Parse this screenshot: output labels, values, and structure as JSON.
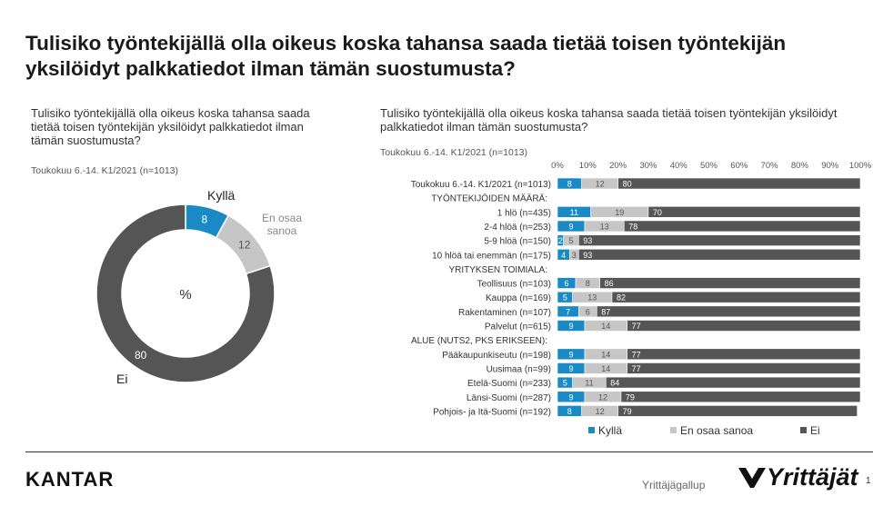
{
  "title": "Tulisiko työntekijällä olla oikeus koska tahansa saada tietää toisen työntekijän yksilöidyt palkkatiedot ilman tämän suostumusta?",
  "colors": {
    "kylla": "#1a8ac6",
    "en_osaa": "#c6c6c6",
    "ei": "#555555"
  },
  "chart_data": [
    {
      "type": "pie",
      "variant": "donut",
      "title": "Tulisiko työntekijällä olla oikeus koska tahansa saada tietää toisen työntekijän yksilöidyt palkkatiedot ilman tämän suostumusta?",
      "subtitle": "Toukokuu 6.-14. K1/2021 (n=1013)",
      "center_label": "%",
      "slices": [
        {
          "label": "Kyllä",
          "value": 8,
          "color": "#1a8ac6"
        },
        {
          "label": "En osaa sanoa",
          "value": 12,
          "color": "#c6c6c6"
        },
        {
          "label": "Ei",
          "value": 80,
          "color": "#555555"
        }
      ]
    },
    {
      "type": "bar",
      "orientation": "horizontal",
      "stacked": true,
      "title": "Tulisiko työntekijällä olla oikeus koska tahansa saada tietää toisen työntekijän yksilöidyt palkkatiedot ilman tämän suostumusta?",
      "subtitle": "Toukokuu 6.-14. K1/2021 (n=1013)",
      "xlim": [
        0,
        100
      ],
      "xticks": [
        "0%",
        "10%",
        "20%",
        "30%",
        "40%",
        "50%",
        "60%",
        "70%",
        "80%",
        "90%",
        "100%"
      ],
      "legend_position": "bottom",
      "legend": [
        "Kyllä",
        "En osaa sanoa",
        "Ei"
      ],
      "rows": [
        {
          "label": "Toukokuu 6.-14. K1/2021 (n=1013)",
          "values": [
            8,
            12,
            80
          ]
        },
        {
          "label": "TYÖNTEKIJÖIDEN MÄÄRÄ:",
          "header": true
        },
        {
          "label": "1 hlö (n=435)",
          "values": [
            11,
            19,
            70
          ]
        },
        {
          "label": "2-4 hlöä (n=253)",
          "values": [
            9,
            13,
            78
          ]
        },
        {
          "label": "5-9 hlöä (n=150)",
          "values": [
            2,
            5,
            93
          ]
        },
        {
          "label": "10 hlöä tai enemmän (n=175)",
          "values": [
            4,
            3,
            93
          ]
        },
        {
          "label": "YRITYKSEN TOIMIALA:",
          "header": true
        },
        {
          "label": "Teollisuus (n=103)",
          "values": [
            6,
            8,
            86
          ]
        },
        {
          "label": "Kauppa (n=169)",
          "values": [
            5,
            13,
            82
          ]
        },
        {
          "label": "Rakentaminen (n=107)",
          "values": [
            7,
            6,
            87
          ]
        },
        {
          "label": "Palvelut (n=615)",
          "values": [
            9,
            14,
            77
          ]
        },
        {
          "label": "ALUE (NUTS2, PKS ERIKSEEN):",
          "header": true
        },
        {
          "label": "Pääkaupunkiseutu (n=198)",
          "values": [
            9,
            14,
            77
          ]
        },
        {
          "label": "Uusimaa (n=99)",
          "values": [
            9,
            14,
            77
          ]
        },
        {
          "label": "Etelä-Suomi (n=233)",
          "values": [
            5,
            11,
            84
          ]
        },
        {
          "label": "Länsi-Suomi (n=287)",
          "values": [
            9,
            12,
            79
          ]
        },
        {
          "label": "Pohjois- ja Itä-Suomi (n=192)",
          "values": [
            8,
            12,
            79
          ]
        }
      ]
    }
  ],
  "footer": {
    "brand": "KANTAR",
    "label": "Yrittäjägallup",
    "logo_text": "Yrittäjät",
    "page": "1"
  }
}
